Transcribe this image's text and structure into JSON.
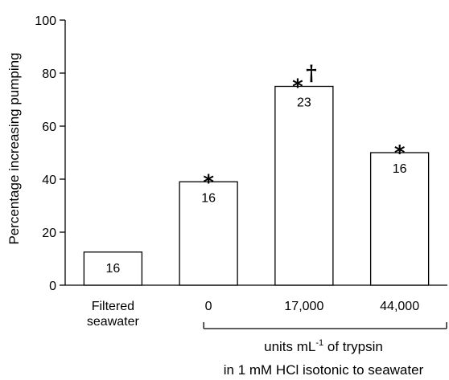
{
  "chart_data": {
    "type": "bar",
    "ylabel": "Percentage increasing pumping",
    "ylim": [
      0,
      100
    ],
    "yticks": [
      0,
      20,
      40,
      60,
      80,
      100
    ],
    "categories": [
      {
        "line1": "Filtered",
        "line2": "seawater"
      },
      {
        "line1": "0",
        "line2": ""
      },
      {
        "line1": "17,000",
        "line2": ""
      },
      {
        "line1": "44,000",
        "line2": ""
      }
    ],
    "values": [
      12.5,
      39,
      75,
      50
    ],
    "n_labels": [
      "16",
      "16",
      "23",
      "16"
    ],
    "significance": [
      "",
      "*",
      "*",
      "*"
    ],
    "dagger": [
      "",
      "",
      "†",
      ""
    ],
    "bar_fill": "#ffffff",
    "bar_stroke": "#000000",
    "group_bracket": {
      "from_category": 1,
      "to_category": 3,
      "label_prefix": "units mL",
      "label_sup": "-1",
      "label_suffix": " of trypsin",
      "label_line2": "in 1 mM HCl isotonic to seawater"
    }
  }
}
